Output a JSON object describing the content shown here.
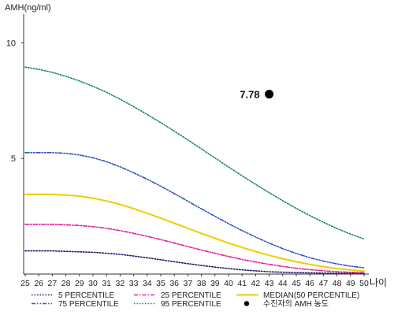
{
  "chart_data": {
    "type": "line",
    "title": "",
    "xlabel": "나이",
    "ylabel": "AMH(ng/ml)",
    "x": [
      25,
      26,
      27,
      28,
      29,
      30,
      31,
      32,
      33,
      34,
      35,
      36,
      37,
      38,
      39,
      40,
      41,
      42,
      43,
      44,
      45,
      46,
      47,
      48,
      49,
      50
    ],
    "xlim": [
      25,
      50
    ],
    "ylim": [
      0,
      11
    ],
    "yticks": [
      5,
      10
    ],
    "grid": false,
    "legend_position": "bottom",
    "series": [
      {
        "name": "5 PERCENTILE",
        "color": "#1a1a66",
        "dash": "dotted",
        "values": [
          1.0,
          1.0,
          1.0,
          0.98,
          0.96,
          0.94,
          0.9,
          0.85,
          0.78,
          0.7,
          0.62,
          0.53,
          0.45,
          0.37,
          0.3,
          0.24,
          0.18,
          0.14,
          0.1,
          0.08,
          0.06,
          0.05,
          0.04,
          0.03,
          0.03,
          0.02
        ]
      },
      {
        "name": "25 PERCENTILE",
        "color": "#e0239a",
        "dash": "dashdot",
        "values": [
          2.15,
          2.15,
          2.15,
          2.13,
          2.1,
          2.05,
          1.98,
          1.88,
          1.76,
          1.63,
          1.49,
          1.34,
          1.19,
          1.04,
          0.9,
          0.76,
          0.63,
          0.52,
          0.42,
          0.33,
          0.25,
          0.19,
          0.14,
          0.1,
          0.08,
          0.06
        ]
      },
      {
        "name": "MEDIAN(50 PERCENTILE)",
        "color": "#f0cc00",
        "dash": "solid",
        "values": [
          3.45,
          3.45,
          3.45,
          3.42,
          3.37,
          3.28,
          3.16,
          3.01,
          2.83,
          2.63,
          2.42,
          2.2,
          1.98,
          1.76,
          1.55,
          1.34,
          1.15,
          0.97,
          0.81,
          0.66,
          0.53,
          0.42,
          0.32,
          0.24,
          0.18,
          0.13
        ]
      },
      {
        "name": "75 PERCENTILE",
        "color": "#3355bb",
        "dash": "dashdotdot",
        "values": [
          5.25,
          5.25,
          5.25,
          5.22,
          5.15,
          5.03,
          4.86,
          4.64,
          4.38,
          4.1,
          3.8,
          3.48,
          3.15,
          2.82,
          2.5,
          2.18,
          1.88,
          1.6,
          1.34,
          1.1,
          0.89,
          0.71,
          0.56,
          0.44,
          0.34,
          0.27
        ]
      },
      {
        "name": "95 PERCENTILE",
        "color": "#1e8a50",
        "dash": "dotted",
        "values": [
          8.95,
          8.85,
          8.72,
          8.55,
          8.35,
          8.12,
          7.86,
          7.56,
          7.24,
          6.9,
          6.55,
          6.18,
          5.8,
          5.41,
          5.02,
          4.63,
          4.25,
          3.88,
          3.52,
          3.17,
          2.84,
          2.53,
          2.24,
          1.97,
          1.73,
          1.52
        ]
      }
    ],
    "annotation": {
      "label": "수진자의 AMH 농도",
      "x": 43,
      "y": 7.78,
      "value_text": "7.78",
      "color": "#000000"
    }
  }
}
